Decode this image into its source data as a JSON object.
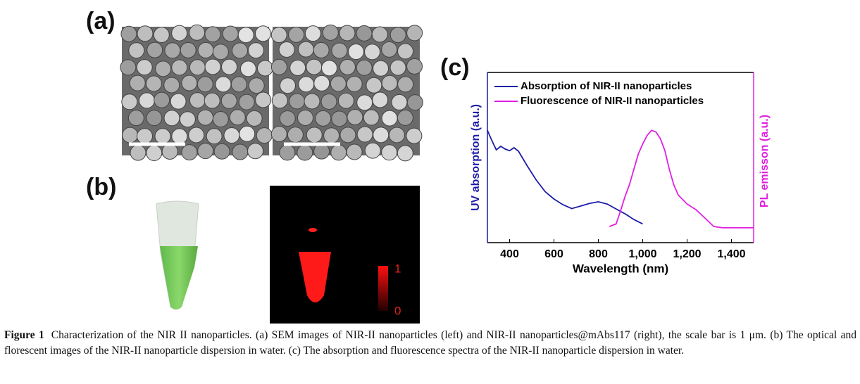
{
  "panels": {
    "a": "(a)",
    "b": "(b)",
    "c": "(c)"
  },
  "colorbar": {
    "max": 1,
    "min": 0
  },
  "chart_data": {
    "type": "line",
    "xlabel": "Wavelength (nm)",
    "ylabel": "UV absorption (a.u.)",
    "y2label": "PL emisson (a.u.)",
    "xlim": [
      300,
      1500
    ],
    "ylim": [
      0,
      1
    ],
    "y2lim": [
      0,
      1
    ],
    "xticks": [
      400,
      600,
      800,
      {
        "value": 1000,
        "label": "1,000"
      },
      {
        "value": 1200,
        "label": "1,200"
      },
      {
        "value": 1400,
        "label": "1,400"
      }
    ],
    "series": [
      {
        "name": "Absorption of NIR-II nanoparticles",
        "color": "#1c1ca8",
        "x": [
          300,
          320,
          340,
          360,
          380,
          400,
          420,
          440,
          480,
          520,
          560,
          600,
          640,
          680,
          720,
          760,
          800,
          840,
          880,
          920,
          960,
          1000
        ],
        "values": [
          0.66,
          0.6,
          0.545,
          0.566,
          0.55,
          0.54,
          0.558,
          0.537,
          0.45,
          0.368,
          0.3,
          0.256,
          0.223,
          0.2,
          0.215,
          0.23,
          0.24,
          0.227,
          0.198,
          0.17,
          0.136,
          0.11
        ]
      },
      {
        "name": "Fluorescence of NIR-II nanoparticles",
        "color": "#e020e0",
        "axis": "y2",
        "x": [
          850,
          880,
          900,
          920,
          940,
          960,
          980,
          1000,
          1020,
          1040,
          1060,
          1080,
          1100,
          1120,
          1140,
          1160,
          1200,
          1240,
          1280,
          1320,
          1360,
          1400,
          1450,
          1500
        ],
        "values": [
          0.095,
          0.11,
          0.186,
          0.27,
          0.34,
          0.43,
          0.52,
          0.58,
          0.63,
          0.66,
          0.65,
          0.61,
          0.54,
          0.43,
          0.34,
          0.28,
          0.227,
          0.194,
          0.145,
          0.095,
          0.087,
          0.087,
          0.087,
          0.087
        ]
      }
    ]
  },
  "caption": {
    "label": "Figure 1",
    "text": "Characterization of the NIR II nanoparticles. (a) SEM images of NIR-II nanoparticles (left) and NIR-II nanoparticles@mAbs117 (right), the scale bar is 1 μm. (b) The optical and florescent images of the NIR-II nanoparticle dispersion in water. (c) The absorption and fluorescence spectra of the NIR-II nanoparticle dispersion in water."
  }
}
